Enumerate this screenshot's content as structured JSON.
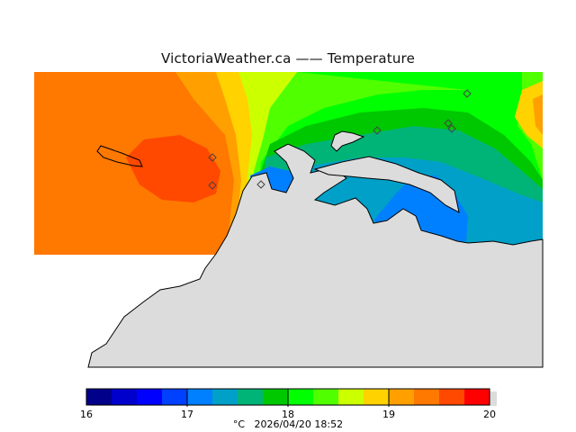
{
  "title": "VictoriaWeather.ca  —— Temperature",
  "legend": {
    "ticks": [
      "16",
      "17",
      "18",
      "19",
      "20"
    ],
    "unit": "°C",
    "timestamp": "2026/04/20 18:52",
    "colors": [
      "#00008b",
      "#0000cd",
      "#0000ff",
      "#0040ff",
      "#0080ff",
      "#00a0c8",
      "#00b478",
      "#00c800",
      "#00ff00",
      "#50ff00",
      "#ccff00",
      "#ffd200",
      "#ffa000",
      "#ff7800",
      "#ff4800",
      "#ff0000"
    ]
  },
  "palette": {
    "land": "#dcdcdc",
    "coastline": "#000000",
    "no_data": "#ffffff"
  },
  "stations": {
    "count": 7,
    "marker": "diamond-icon"
  }
}
